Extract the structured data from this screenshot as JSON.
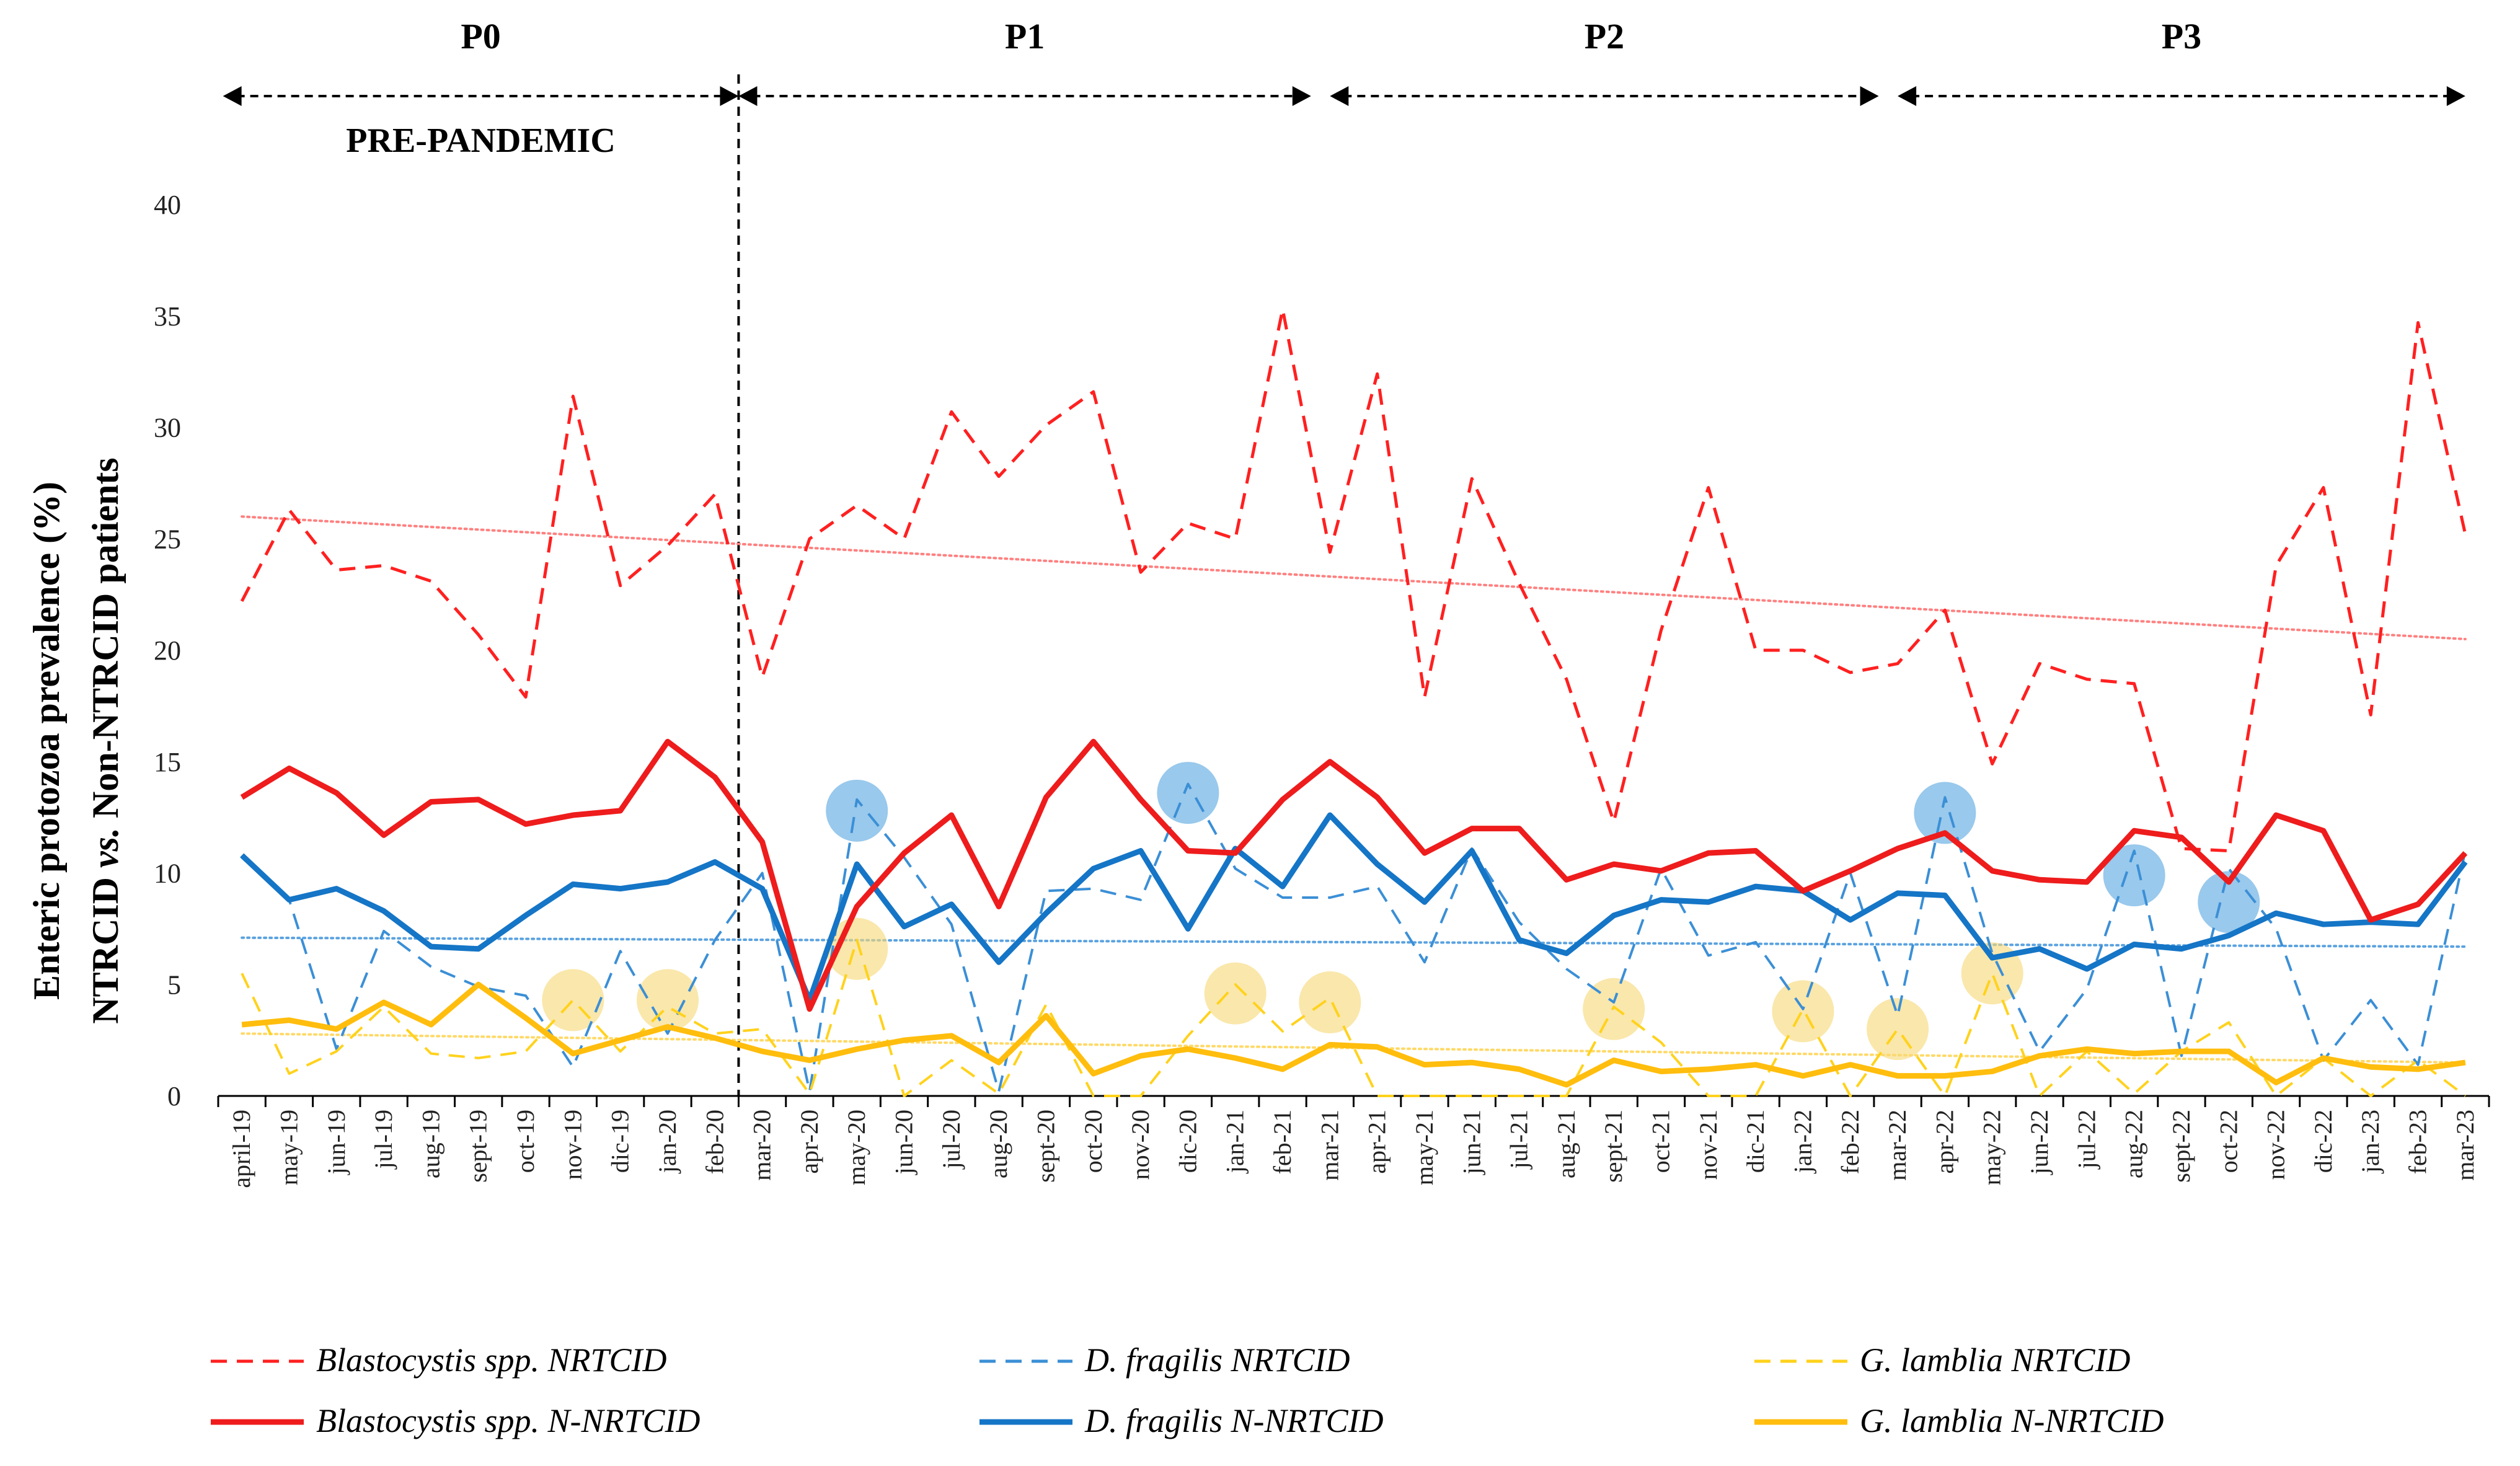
{
  "chart_data": {
    "type": "line",
    "ylabel_line1": "Enteric protozoa prevalence (%)",
    "ylabel_line2_a": "NTRCID ",
    "ylabel_line2_b": "vs.",
    "ylabel_line2_c": " Non-NTRCID patients",
    "ylim": [
      0,
      40
    ],
    "yticks": [
      "0",
      "5",
      "10",
      "15",
      "20",
      "25",
      "30",
      "35",
      "40"
    ],
    "categories": [
      "april-19",
      "may-19",
      "jun-19",
      "jul-19",
      "aug-19",
      "sept-19",
      "oct-19",
      "nov-19",
      "dic-19",
      "jan-20",
      "feb-20",
      "mar-20",
      "apr-20",
      "may-20",
      "jun-20",
      "jul-20",
      "aug-20",
      "sept-20",
      "oct-20",
      "nov-20",
      "dic-20",
      "jan-21",
      "feb-21",
      "mar-21",
      "apr-21",
      "may-21",
      "jun-21",
      "jul-21",
      "aug-21",
      "sept-21",
      "oct-21",
      "nov-21",
      "dic-21",
      "jan-22",
      "feb-22",
      "mar-22",
      "apr-22",
      "may-22",
      "jun-22",
      "jul-22",
      "aug-22",
      "sept-22",
      "oct-22",
      "nov-22",
      "dic-22",
      "jan-23",
      "feb-23",
      "mar-23"
    ],
    "periods": [
      {
        "label": "P0",
        "start_index": 0,
        "end_index": 10.5
      },
      {
        "label": "P1",
        "start_index": 10.5,
        "end_index": 22.6
      },
      {
        "label": "P2",
        "start_index": 23,
        "end_index": 34.6
      },
      {
        "label": "P3",
        "start_index": 35,
        "end_index": 47
      }
    ],
    "prepandemic_label": "PRE-PANDEMIC",
    "divider_index": 10.5,
    "series": [
      {
        "name": "Blastocystis spp. NRTCID",
        "color": "#ff2020",
        "style": "dashed",
        "width": 5,
        "values": [
          22.2,
          26.3,
          23.6,
          23.8,
          23.1,
          20.7,
          17.9,
          31.4,
          22.9,
          24.7,
          27.0,
          18.8,
          25.0,
          26.5,
          25.0,
          30.7,
          27.8,
          30.1,
          31.6,
          23.5,
          25.7,
          25.0,
          35.3,
          24.4,
          32.4,
          17.9,
          27.7,
          23.0,
          18.7,
          12.3,
          20.9,
          27.3,
          20.0,
          20.0,
          19.0,
          19.4,
          21.8,
          14.9,
          19.4,
          18.7,
          18.5,
          11.1,
          11.0,
          23.8,
          27.3,
          17.1,
          34.7,
          25.2
        ]
      },
      {
        "name": "D. fragilis NRTCID",
        "color": "#3b8fd6",
        "style": "dashed",
        "width": 4,
        "values": [
          10.7,
          8.8,
          2.1,
          7.4,
          5.8,
          4.9,
          4.5,
          1.3,
          6.5,
          2.8,
          7.0,
          10.0,
          0.2,
          13.3,
          10.7,
          7.7,
          0.2,
          9.2,
          9.3,
          8.8,
          14.0,
          10.2,
          8.9,
          8.9,
          9.4,
          6.0,
          11.1,
          7.8,
          5.7,
          4.2,
          10.2,
          6.3,
          6.9,
          3.9,
          10.0,
          3.6,
          13.4,
          6.4,
          2.0,
          4.8,
          11.0,
          1.8,
          10.2,
          7.5,
          1.6,
          4.3,
          1.4,
          11.0
        ]
      },
      {
        "name": "G. lamblia NRTCID",
        "color": "#ffd21c",
        "style": "dashed",
        "width": 4,
        "values": [
          5.5,
          1.0,
          2.0,
          4.0,
          1.9,
          1.7,
          2.0,
          4.3,
          2.0,
          4.0,
          2.8,
          3.0,
          0.1,
          7.0,
          0.0,
          1.6,
          0.1,
          4.1,
          0.0,
          0.0,
          2.7,
          5.0,
          2.9,
          4.4,
          0.0,
          0.0,
          0.0,
          0.0,
          0.0,
          4.0,
          2.4,
          0.0,
          0.0,
          3.9,
          0.0,
          3.0,
          0.0,
          5.5,
          0.0,
          2.0,
          0.1,
          2.0,
          3.3,
          0.0,
          1.7,
          0.0,
          1.6,
          0.0
        ]
      },
      {
        "name": "Blastocystis spp. N-NRTCID",
        "color": "#ee1c1c",
        "style": "solid",
        "width": 9,
        "values": [
          13.4,
          14.7,
          13.6,
          11.7,
          13.2,
          13.3,
          12.2,
          12.6,
          12.8,
          15.9,
          14.3,
          11.4,
          3.9,
          8.5,
          10.9,
          12.6,
          8.5,
          13.4,
          15.9,
          13.3,
          11.0,
          10.9,
          13.3,
          15.0,
          13.4,
          10.9,
          12.0,
          12.0,
          9.7,
          10.4,
          10.1,
          10.9,
          11.0,
          9.2,
          10.1,
          11.1,
          11.8,
          10.1,
          9.7,
          9.6,
          11.9,
          11.6,
          9.6,
          12.6,
          11.9,
          7.9,
          8.6,
          10.9
        ]
      },
      {
        "name": "D. fragilis N-NRTCID",
        "color": "#1575c6",
        "style": "solid",
        "width": 9,
        "values": [
          10.8,
          8.8,
          9.3,
          8.3,
          6.7,
          6.6,
          8.1,
          9.5,
          9.3,
          9.6,
          10.5,
          9.3,
          4.3,
          10.4,
          7.6,
          8.6,
          6.0,
          8.2,
          10.2,
          11.0,
          7.5,
          11.1,
          9.4,
          12.6,
          10.4,
          8.7,
          11.0,
          7.0,
          6.4,
          8.1,
          8.8,
          8.7,
          9.4,
          9.2,
          7.9,
          9.1,
          9.0,
          6.2,
          6.6,
          5.7,
          6.8,
          6.6,
          7.2,
          8.2,
          7.7,
          7.8,
          7.7,
          10.5
        ]
      },
      {
        "name": "G. lamblia N-NRTCID",
        "color": "#ffbd0d",
        "style": "solid",
        "width": 9,
        "values": [
          3.2,
          3.4,
          3.0,
          4.2,
          3.2,
          5.0,
          3.5,
          1.9,
          2.5,
          3.1,
          2.6,
          2.0,
          1.6,
          2.1,
          2.5,
          2.7,
          1.5,
          3.6,
          1.0,
          1.8,
          2.1,
          1.7,
          1.2,
          2.3,
          2.2,
          1.4,
          1.5,
          1.2,
          0.5,
          1.6,
          1.1,
          1.2,
          1.4,
          0.9,
          1.4,
          0.9,
          0.9,
          1.1,
          1.8,
          2.1,
          1.9,
          2.0,
          2.0,
          0.6,
          1.7,
          1.3,
          1.2,
          1.5
        ]
      }
    ],
    "trendlines": [
      {
        "name": "Blastocystis spp. NRTCID trend",
        "color": "#ff8080",
        "start": 26.0,
        "end": 20.5
      },
      {
        "name": "D. fragilis NRTCID trend",
        "color": "#5aa2e0",
        "start": 7.1,
        "end": 6.7
      },
      {
        "name": "G. lamblia NRTCID trend",
        "color": "#ffd966",
        "start": 2.8,
        "end": 1.5
      }
    ],
    "highlight_circles": [
      {
        "category_index": 13,
        "value": 12.8,
        "color": "#5aa8e0"
      },
      {
        "category_index": 20,
        "value": 13.6,
        "color": "#5aa8e0"
      },
      {
        "category_index": 36,
        "value": 12.7,
        "color": "#5aa8e0"
      },
      {
        "category_index": 40,
        "value": 9.9,
        "color": "#5aa8e0"
      },
      {
        "category_index": 42,
        "value": 8.7,
        "color": "#5aa8e0"
      },
      {
        "category_index": 7,
        "value": 4.3,
        "color": "#f7d978"
      },
      {
        "category_index": 9,
        "value": 4.3,
        "color": "#f7d978"
      },
      {
        "category_index": 13,
        "value": 6.6,
        "color": "#f7d978"
      },
      {
        "category_index": 21,
        "value": 4.6,
        "color": "#f7d978"
      },
      {
        "category_index": 23,
        "value": 4.2,
        "color": "#f7d978"
      },
      {
        "category_index": 29,
        "value": 3.9,
        "color": "#f7d978"
      },
      {
        "category_index": 33,
        "value": 3.8,
        "color": "#f7d978"
      },
      {
        "category_index": 35,
        "value": 3.0,
        "color": "#f7d978"
      },
      {
        "category_index": 37,
        "value": 5.5,
        "color": "#f7d978"
      }
    ],
    "legend": {
      "placement": "bottom",
      "items": [
        {
          "label": "Blastocystis spp. NRTCID",
          "color": "#ff2020",
          "style": "dashed"
        },
        {
          "label": "D. fragilis NRTCID",
          "color": "#3b8fd6",
          "style": "dashed"
        },
        {
          "label": "G. lamblia NRTCID",
          "color": "#ffd21c",
          "style": "dashed"
        },
        {
          "label": "Blastocystis spp. N-NRTCID",
          "color": "#ee1c1c",
          "style": "solid"
        },
        {
          "label": "D. fragilis N-NRTCID",
          "color": "#1575c6",
          "style": "solid"
        },
        {
          "label": "G. lamblia N-NRTCID",
          "color": "#ffbd0d",
          "style": "solid"
        }
      ]
    }
  }
}
